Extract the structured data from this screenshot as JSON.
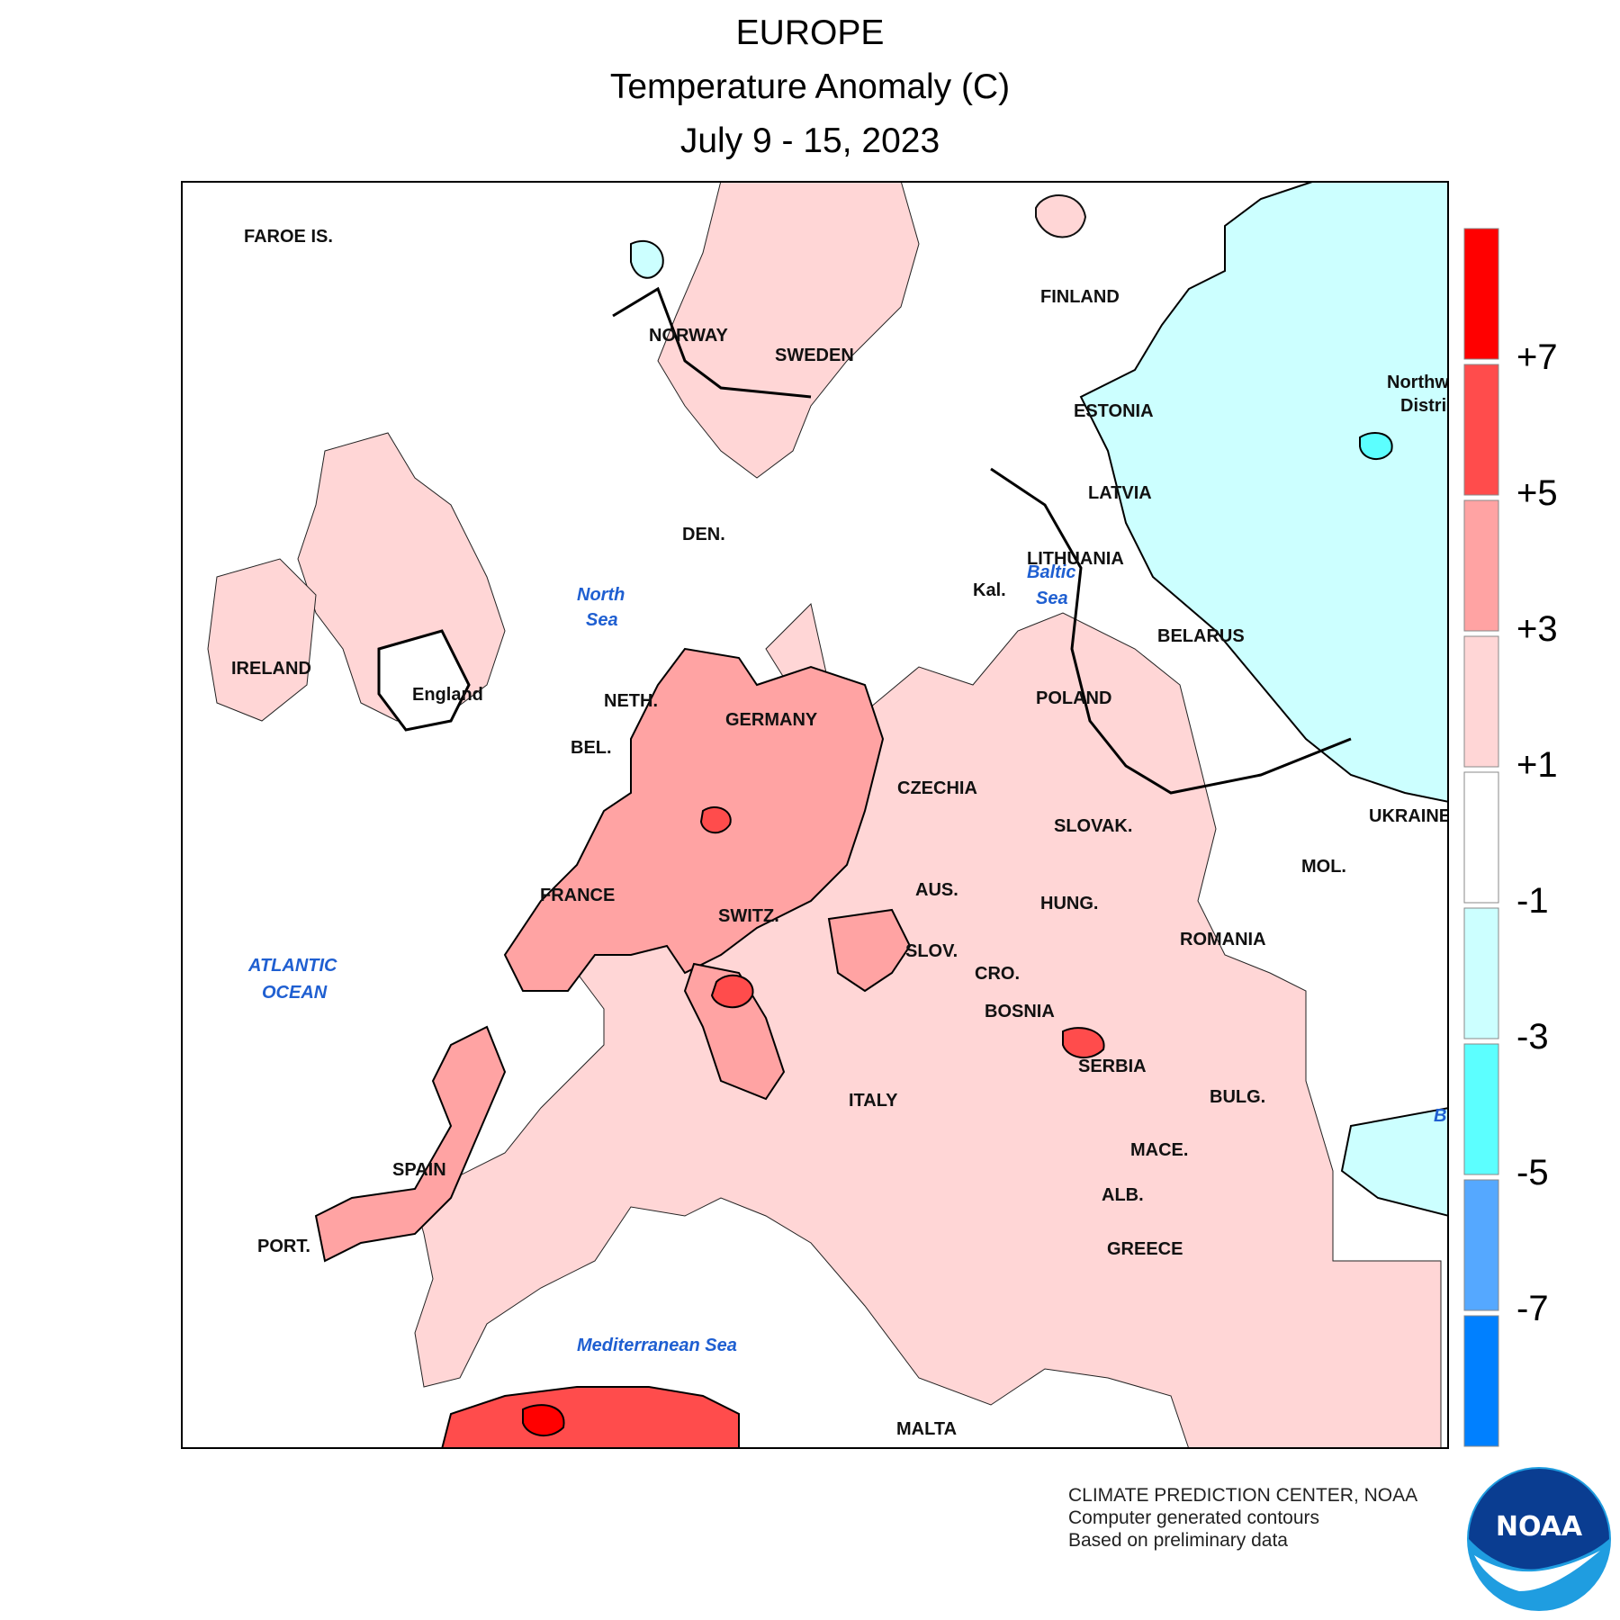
{
  "title": {
    "line1": "EUROPE",
    "line2": "Temperature Anomaly (C)",
    "line3": "July 9 - 15, 2023"
  },
  "labels": {
    "faroe": "FAROE IS.",
    "norway": "NORWAY",
    "sweden": "SWEDEN",
    "finland": "FINLAND",
    "estonia": "ESTONIA",
    "latvia": "LATVIA",
    "lithuania": "LITHUANIA",
    "kal": "Kal.",
    "belarus": "BELARUS",
    "northwest1": "Northw",
    "northwest2": "Distri",
    "ukraine": "UKRAINE",
    "mol": "MOL.",
    "romania": "ROMANIA",
    "den": "DEN.",
    "ireland": "IRELAND",
    "england": "England",
    "neth": "NETH.",
    "bel": "BEL.",
    "germany": "GERMANY",
    "poland": "POLAND",
    "czechia": "CZECHIA",
    "slovak": "SLOVAK.",
    "hung": "HUNG.",
    "aus": "AUS.",
    "switz": "SWITZ.",
    "slov": "SLOV.",
    "cro": "CRO.",
    "bosnia": "BOSNIA",
    "serbia": "SERBIA",
    "bulg": "BULG.",
    "mace": "MACE.",
    "alb": "ALB.",
    "greece": "GREECE",
    "france": "FRANCE",
    "spain": "SPAIN",
    "port": "PORT.",
    "italy": "ITALY",
    "malta": "MALTA"
  },
  "seas": {
    "north_sea_1": "North",
    "north_sea_2": "Sea",
    "baltic_1": "Baltic",
    "baltic_2": "Sea",
    "atlantic_1": "ATLANTIC",
    "atlantic_2": "OCEAN",
    "mediterranean": "Mediterranean Sea",
    "black_sea_fragment": "B"
  },
  "legend": {
    "bins": [
      {
        "range": "> +7",
        "color": "#ff0000"
      },
      {
        "range": "+5 to +7",
        "color": "#ff4c4c"
      },
      {
        "range": "+3 to +5",
        "color": "#ffa3a3"
      },
      {
        "range": "+1 to +3",
        "color": "#ffd6d6"
      },
      {
        "range": "-1 to +1",
        "color": "#ffffff"
      },
      {
        "range": "-3 to -1",
        "color": "#ccffff"
      },
      {
        "range": "-5 to -3",
        "color": "#5cffff"
      },
      {
        "range": "-7 to -5",
        "color": "#55a8ff"
      },
      {
        "range": "< -7",
        "color": "#0080ff"
      }
    ],
    "tick_labels": [
      "+7",
      "+5",
      "+3",
      "+1",
      "-1",
      "-3",
      "-5",
      "-7"
    ]
  },
  "credits": {
    "line1": "CLIMATE PREDICTION CENTER, NOAA",
    "line2": "Computer generated contours",
    "line3": "Based on preliminary data"
  },
  "logo": {
    "text": "NOAA",
    "colors": {
      "dark": "#0a3d91",
      "light": "#1f9de0"
    }
  },
  "colors": {
    "anom_1_3": "#ffd6d6",
    "anom_3_5": "#ffa3a3",
    "anom_5_7": "#ff4c4c",
    "anom_gt7": "#ff0000",
    "anom_m1_m3": "#ccffff",
    "anom_m3_m5": "#5cffff",
    "ocean": "#ffffff",
    "coast": "#000000"
  }
}
